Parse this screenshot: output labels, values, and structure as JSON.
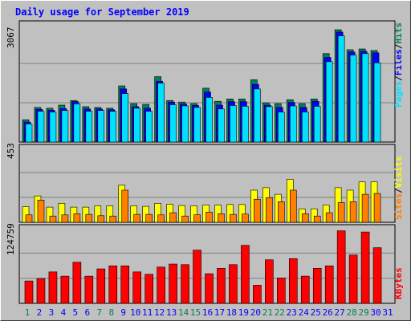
{
  "chart_data": [
    {
      "type": "bar",
      "title": "Daily usage for September 2019",
      "days": [
        "1",
        "2",
        "3",
        "4",
        "5",
        "6",
        "7",
        "8",
        "9",
        "10",
        "11",
        "12",
        "13",
        "14",
        "15",
        "16",
        "17",
        "18",
        "19",
        "20",
        "21",
        "22",
        "23",
        "24",
        "25",
        "26",
        "27",
        "28",
        "29",
        "30",
        "31"
      ],
      "weekend_days": [
        "1",
        "7",
        "8",
        "14",
        "15",
        "21",
        "22",
        "28",
        "29"
      ],
      "max_label": "3067",
      "ylim": [
        0,
        3067
      ],
      "series": [
        {
          "name": "Hits",
          "color": "#00805c",
          "values": [
            580,
            900,
            880,
            960,
            1080,
            920,
            900,
            880,
            1460,
            1000,
            980,
            1700,
            1080,
            1040,
            1000,
            1400,
            1060,
            1120,
            1120,
            1620,
            1020,
            1000,
            1100,
            1000,
            1120,
            2300,
            2920,
            2400,
            2420,
            2380,
            null
          ]
        },
        {
          "name": "Files",
          "color": "#0000ff",
          "values": [
            520,
            850,
            830,
            870,
            1050,
            860,
            860,
            840,
            1380,
            920,
            880,
            1580,
            1040,
            990,
            950,
            1300,
            960,
            1050,
            1050,
            1500,
            960,
            900,
            1030,
            900,
            1060,
            2200,
            2860,
            2340,
            2360,
            2320,
            null
          ]
        },
        {
          "name": "Pages",
          "color": "#00e0ff",
          "values": [
            470,
            800,
            780,
            820,
            990,
            800,
            820,
            800,
            1260,
            880,
            800,
            1530,
            970,
            940,
            900,
            1160,
            860,
            950,
            930,
            1380,
            920,
            780,
            940,
            780,
            930,
            2090,
            2760,
            2260,
            2300,
            2060,
            null
          ]
        }
      ]
    },
    {
      "type": "bar",
      "max_label": "453",
      "ylim": [
        0,
        453
      ],
      "series": [
        {
          "name": "Visits",
          "color": "#ffff00",
          "values": [
            95,
            160,
            92,
            115,
            92,
            92,
            100,
            100,
            225,
            100,
            97,
            115,
            110,
            102,
            100,
            105,
            104,
            108,
            108,
            195,
            210,
            170,
            260,
            82,
            82,
            105,
            210,
            195,
            245,
            245,
            null
          ]
        },
        {
          "name": "Sites",
          "color": "#ff8000",
          "values": [
            45,
            135,
            38,
            45,
            52,
            48,
            40,
            38,
            195,
            48,
            48,
            45,
            58,
            38,
            46,
            62,
            52,
            48,
            50,
            140,
            150,
            125,
            195,
            52,
            38,
            58,
            120,
            125,
            170,
            175,
            null
          ]
        }
      ]
    },
    {
      "type": "bar",
      "max_label": "124759",
      "ylim": [
        0,
        124759
      ],
      "series": [
        {
          "name": "KBytes",
          "color": "#ff0000",
          "values": [
            37000,
            41000,
            52000,
            45000,
            68000,
            45000,
            57000,
            62000,
            62000,
            52000,
            48000,
            60000,
            65000,
            64000,
            88000,
            49000,
            58000,
            64000,
            96000,
            30000,
            72000,
            42000,
            74000,
            45000,
            58000,
            62000,
            120000,
            80000,
            118000,
            92000,
            null
          ]
        }
      ]
    }
  ],
  "legend": {
    "top": [
      "Pages",
      "/",
      "Files",
      "/",
      "Hits"
    ],
    "middle": [
      "Sites",
      "/",
      "Visits"
    ],
    "bottom": [
      "KBytes"
    ]
  },
  "colors": {
    "hits": "#00805c",
    "files": "#0000ff",
    "pages": "#00e0ff",
    "visits": "#ffff00",
    "sites": "#ff8000",
    "kbytes": "#ff0000",
    "weekday_label": "#0000ff",
    "weekend_label": "#00805c",
    "title": "#0000ff"
  }
}
